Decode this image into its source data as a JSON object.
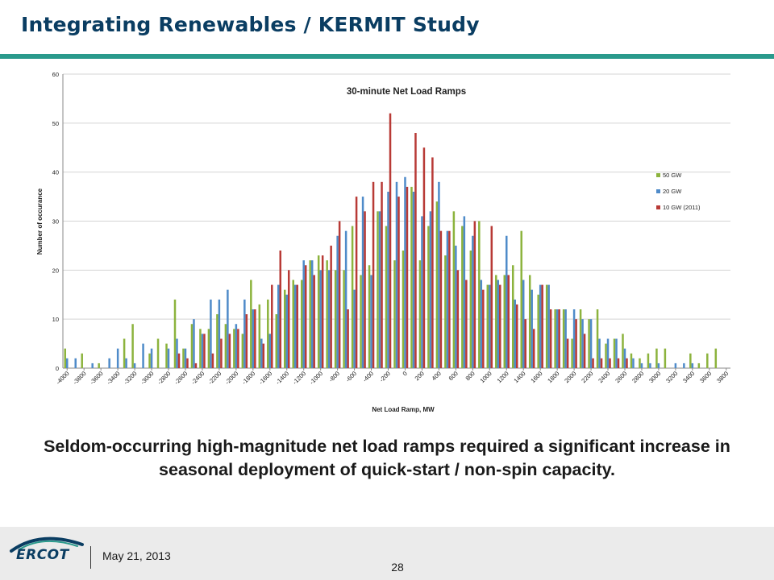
{
  "slide": {
    "title": "Integrating Renewables / KERMIT Study",
    "caption": "Seldom-occurring high-magnitude net load ramps required a significant increase in seasonal deployment of quick-start / non-spin capacity."
  },
  "footer": {
    "logo_text": "ERCOT",
    "date": "May 21, 2013",
    "page_number": "28"
  },
  "colors": {
    "title": "#0a3d62",
    "accent_rule": "#2a9a8c",
    "series_50gw": "#8cb33d",
    "series_20gw": "#4f8bc9",
    "series_10gw": "#b83a36"
  },
  "chart_data": {
    "type": "bar",
    "title": "30-minute Net Load Ramps",
    "xlabel": "Net Load Ramp, MW",
    "ylabel": "Number of occurance",
    "ylim": [
      0,
      60
    ],
    "yticks": [
      0,
      10,
      20,
      30,
      40,
      50,
      60
    ],
    "grid": true,
    "legend_position": "right",
    "categories": [
      -4000,
      -3900,
      -3800,
      -3700,
      -3600,
      -3500,
      -3400,
      -3300,
      -3200,
      -3100,
      -3000,
      -2900,
      -2800,
      -2700,
      -2600,
      -2500,
      -2400,
      -2300,
      -2200,
      -2100,
      -2000,
      -1900,
      -1800,
      -1700,
      -1600,
      -1500,
      -1400,
      -1300,
      -1200,
      -1100,
      -1000,
      -900,
      -800,
      -700,
      -600,
      -500,
      -400,
      -300,
      -200,
      -100,
      0,
      100,
      200,
      300,
      400,
      500,
      600,
      700,
      800,
      900,
      1000,
      1100,
      1200,
      1300,
      1400,
      1500,
      1600,
      1700,
      1800,
      1900,
      2000,
      2100,
      2200,
      2300,
      2400,
      2500,
      2600,
      2700,
      2800,
      2900,
      3000,
      3100,
      3200,
      3300,
      3400,
      3500,
      3600,
      3700,
      3800
    ],
    "tick_labels": [
      "-4000",
      "-3800",
      "-3600",
      "-3400",
      "-3200",
      "-3000",
      "-2800",
      "-2600",
      "-2400",
      "-2200",
      "-2000",
      "-1800",
      "-1600",
      "-1400",
      "-1200",
      "-1000",
      "-800",
      "-600",
      "-400",
      "-200",
      "0",
      "200",
      "400",
      "600",
      "800",
      "1000",
      "1200",
      "1400",
      "1600",
      "1800",
      "2000",
      "2200",
      "2400",
      "2600",
      "2800",
      "3000",
      "3200",
      "3400",
      "3600",
      "3800"
    ],
    "series": [
      {
        "name": "50 GW",
        "color": "#8cb33d",
        "values": [
          4,
          0,
          3,
          0,
          1,
          0,
          0,
          6,
          9,
          0,
          3,
          6,
          5,
          14,
          4,
          9,
          8,
          8,
          11,
          9,
          8,
          7,
          18,
          13,
          14,
          11,
          16,
          18,
          18,
          22,
          23,
          22,
          20,
          20,
          29,
          19,
          21,
          32,
          29,
          22,
          24,
          37,
          22,
          29,
          34,
          23,
          32,
          29,
          24,
          30,
          17,
          19,
          19,
          21,
          28,
          19,
          15,
          17,
          12,
          12,
          6,
          12,
          10,
          12,
          5,
          6,
          7,
          3,
          2,
          3,
          4,
          4,
          0,
          0,
          3,
          1,
          3,
          4,
          0
        ]
      },
      {
        "name": "20 GW",
        "color": "#4f8bc9",
        "values": [
          2,
          2,
          0,
          1,
          0,
          2,
          4,
          2,
          1,
          5,
          4,
          0,
          4,
          6,
          4,
          10,
          7,
          14,
          14,
          16,
          9,
          14,
          12,
          6,
          7,
          17,
          15,
          17,
          22,
          22,
          20,
          20,
          27,
          28,
          16,
          35,
          19,
          32,
          36,
          38,
          39,
          36,
          31,
          32,
          38,
          28,
          25,
          31,
          27,
          18,
          17,
          18,
          27,
          14,
          18,
          16,
          17,
          17,
          12,
          12,
          12,
          10,
          10,
          6,
          6,
          6,
          4,
          2,
          1,
          1,
          1,
          0,
          1,
          1,
          1,
          0,
          0,
          0,
          0
        ]
      },
      {
        "name": "10 GW (2011)",
        "color": "#b83a36",
        "values": [
          0,
          0,
          0,
          0,
          0,
          0,
          0,
          0,
          0,
          0,
          0,
          0,
          0,
          3,
          2,
          1,
          7,
          3,
          6,
          7,
          8,
          11,
          12,
          5,
          17,
          24,
          20,
          17,
          21,
          19,
          23,
          25,
          30,
          12,
          35,
          32,
          38,
          38,
          52,
          35,
          37,
          48,
          45,
          43,
          28,
          28,
          20,
          18,
          30,
          16,
          29,
          17,
          19,
          13,
          10,
          8,
          17,
          12,
          12,
          6,
          10,
          7,
          2,
          2,
          2,
          2,
          2,
          0,
          0,
          0,
          0,
          0,
          0,
          0,
          0,
          0,
          0,
          0,
          0
        ]
      }
    ]
  }
}
